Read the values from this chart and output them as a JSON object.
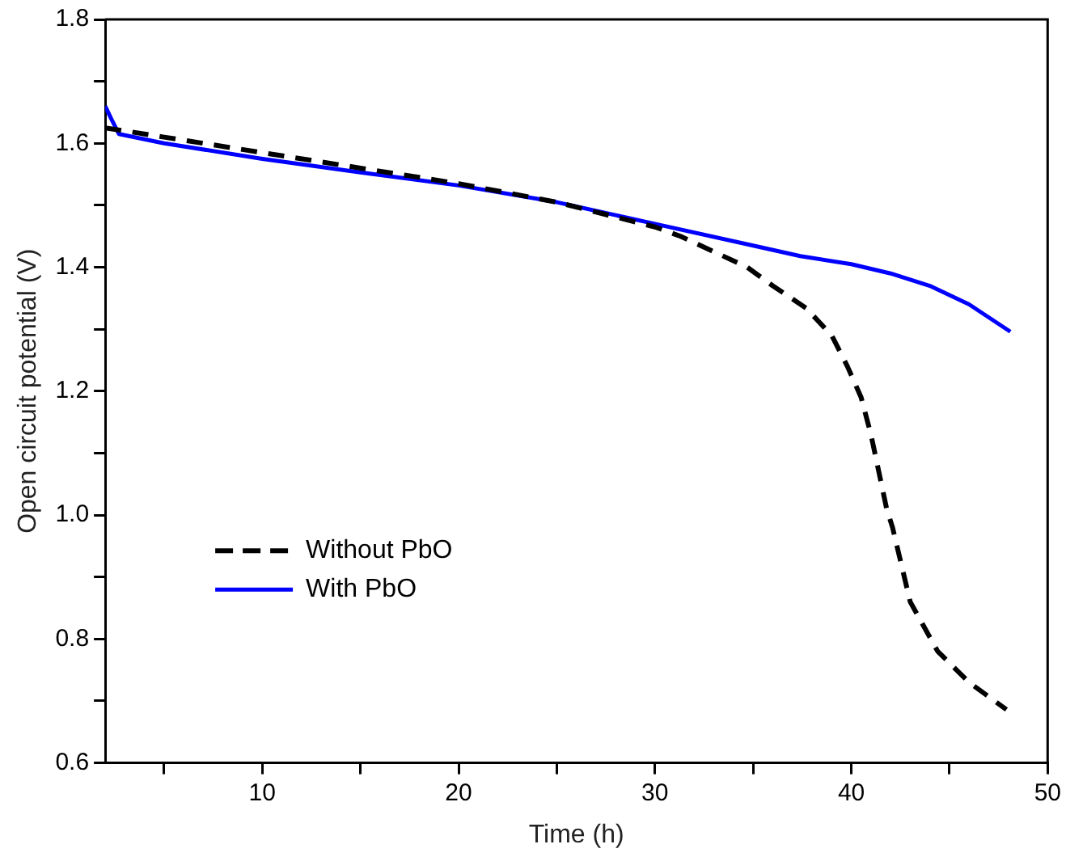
{
  "chart_data": {
    "type": "line",
    "xlabel": "Time (h)",
    "ylabel": "Open circuit potential (V)",
    "xlim": [
      2,
      50
    ],
    "ylim": [
      0.6,
      1.8
    ],
    "xticks": [
      {
        "value": 5,
        "label": null
      },
      10,
      {
        "value": 15,
        "label": null
      },
      20,
      {
        "value": 25,
        "label": null
      },
      30,
      {
        "value": 35,
        "label": null
      },
      40,
      {
        "value": 45,
        "label": null
      },
      50
    ],
    "yticks": [
      0.6,
      {
        "value": 0.7,
        "label": null
      },
      0.8,
      {
        "value": 0.9,
        "label": null
      },
      {
        "value": 1.0,
        "label": "1.0"
      },
      {
        "value": 1.1,
        "label": null
      },
      1.2,
      {
        "value": 1.3,
        "label": null
      },
      1.4,
      {
        "value": 1.5,
        "label": null
      },
      1.6,
      {
        "value": 1.7,
        "label": null
      },
      1.8
    ],
    "grid": false,
    "legend": "left",
    "marker": "none",
    "series": [
      {
        "name": "Without PbO",
        "color": "#000000",
        "line_style": "dashed",
        "x": [
          2,
          5,
          10,
          15,
          20,
          25,
          30,
          31.3,
          33,
          34.7,
          36,
          37.7,
          39,
          39.8,
          40.5,
          41,
          41.8,
          42.1,
          43,
          44.4,
          46,
          47.9
        ],
        "values": [
          1.625,
          1.61,
          1.585,
          1.56,
          1.535,
          1.505,
          1.465,
          1.45,
          1.425,
          1.4,
          1.37,
          1.334,
          1.29,
          1.24,
          1.19,
          1.13,
          1.01,
          0.98,
          0.86,
          0.78,
          0.73,
          0.686
        ]
      },
      {
        "name": "With PbO",
        "color": "#0000ff",
        "line_style": "solid",
        "x": [
          2,
          2.3,
          2.7,
          5,
          10,
          15,
          20,
          25,
          30,
          35,
          37.4,
          40,
          42,
          44,
          46,
          48.1
        ],
        "values": [
          1.66,
          1.64,
          1.615,
          1.6,
          1.575,
          1.553,
          1.532,
          1.505,
          1.47,
          1.435,
          1.418,
          1.405,
          1.39,
          1.37,
          1.34,
          1.296
        ]
      }
    ]
  }
}
